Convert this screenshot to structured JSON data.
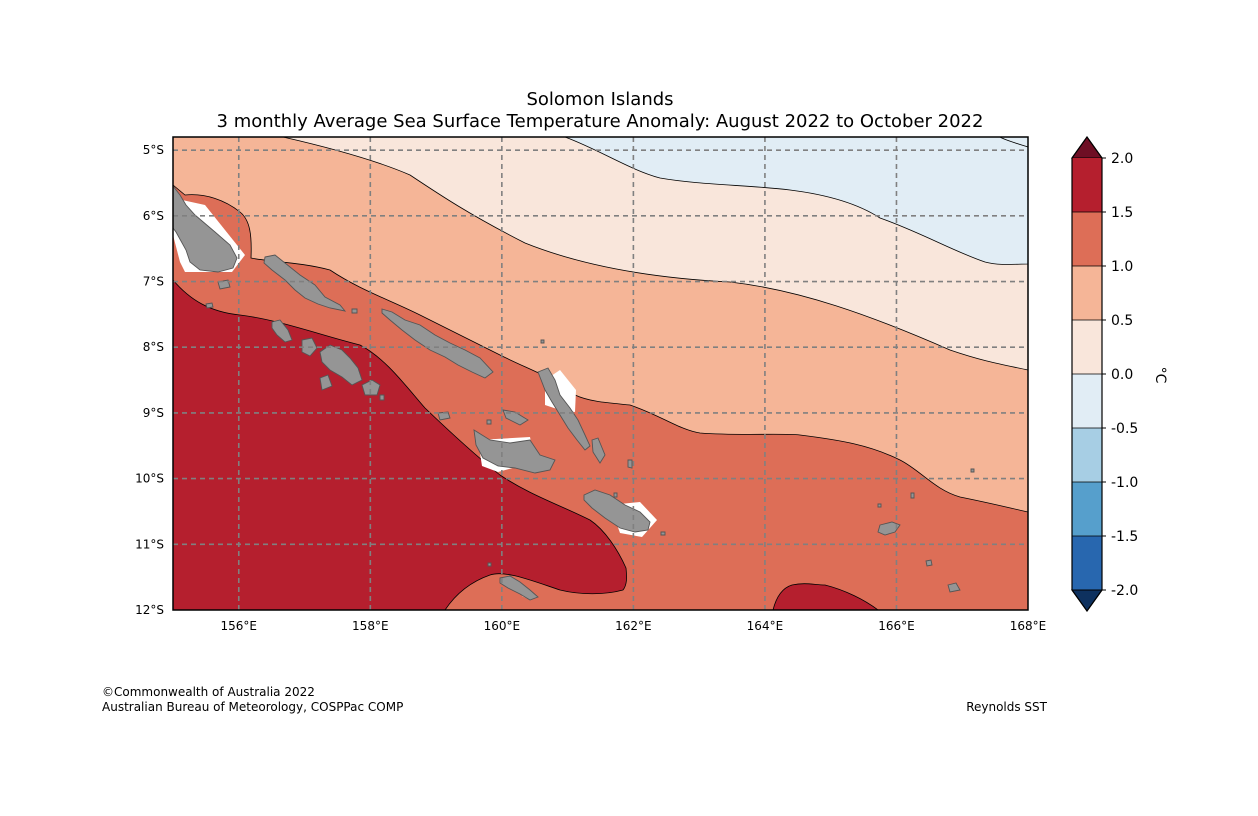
{
  "title": {
    "line1": "Solomon Islands",
    "line2": "3 monthly Average Sea Surface Temperature Anomaly: August 2022 to October 2022"
  },
  "map": {
    "lon_range": [
      155,
      168
    ],
    "lat_range": [
      -12.0,
      -4.8
    ],
    "lon_ticks": [
      {
        "value": 156,
        "label": "156°E"
      },
      {
        "value": 158,
        "label": "158°E"
      },
      {
        "value": 160,
        "label": "160°E"
      },
      {
        "value": 162,
        "label": "162°E"
      },
      {
        "value": 164,
        "label": "164°E"
      },
      {
        "value": 166,
        "label": "166°E"
      },
      {
        "value": 168,
        "label": "168°E"
      }
    ],
    "lat_ticks": [
      {
        "value": -5,
        "label": "5°S"
      },
      {
        "value": -6,
        "label": "6°S"
      },
      {
        "value": -7,
        "label": "7°S"
      },
      {
        "value": -8,
        "label": "8°S"
      },
      {
        "value": -9,
        "label": "9°S"
      },
      {
        "value": -10,
        "label": "10°S"
      },
      {
        "value": -11,
        "label": "11°S"
      },
      {
        "value": -12,
        "label": "12°S"
      }
    ],
    "land_color": "#959595",
    "grid_color": "#808080"
  },
  "colorbar": {
    "unit": "°C",
    "labels": [
      "2.0",
      "1.5",
      "1.0",
      "0.5",
      "0.0",
      "-0.5",
      "-1.0",
      "-1.5",
      "-2.0"
    ],
    "colors": {
      "over": "#6e0e24",
      "c_1_5_2_0": "#b51f2e",
      "c_1_0_1_5": "#dd6e57",
      "c_0_5_1_0": "#f5b597",
      "c_0_0_0_5": "#f9e6db",
      "c_m0_5_0_0": "#e1edf5",
      "c_m1_0_m0_5": "#a7cee4",
      "c_m1_5_m1_0": "#569fcc",
      "c_m2_0_m1_5": "#2867af",
      "under": "#0e315f"
    }
  },
  "footer": {
    "copyright": "©Commonwealth of Australia 2022",
    "agency": "Australian Bureau of Meteorology, COSPPac COMP",
    "source": "Reynolds SST"
  }
}
